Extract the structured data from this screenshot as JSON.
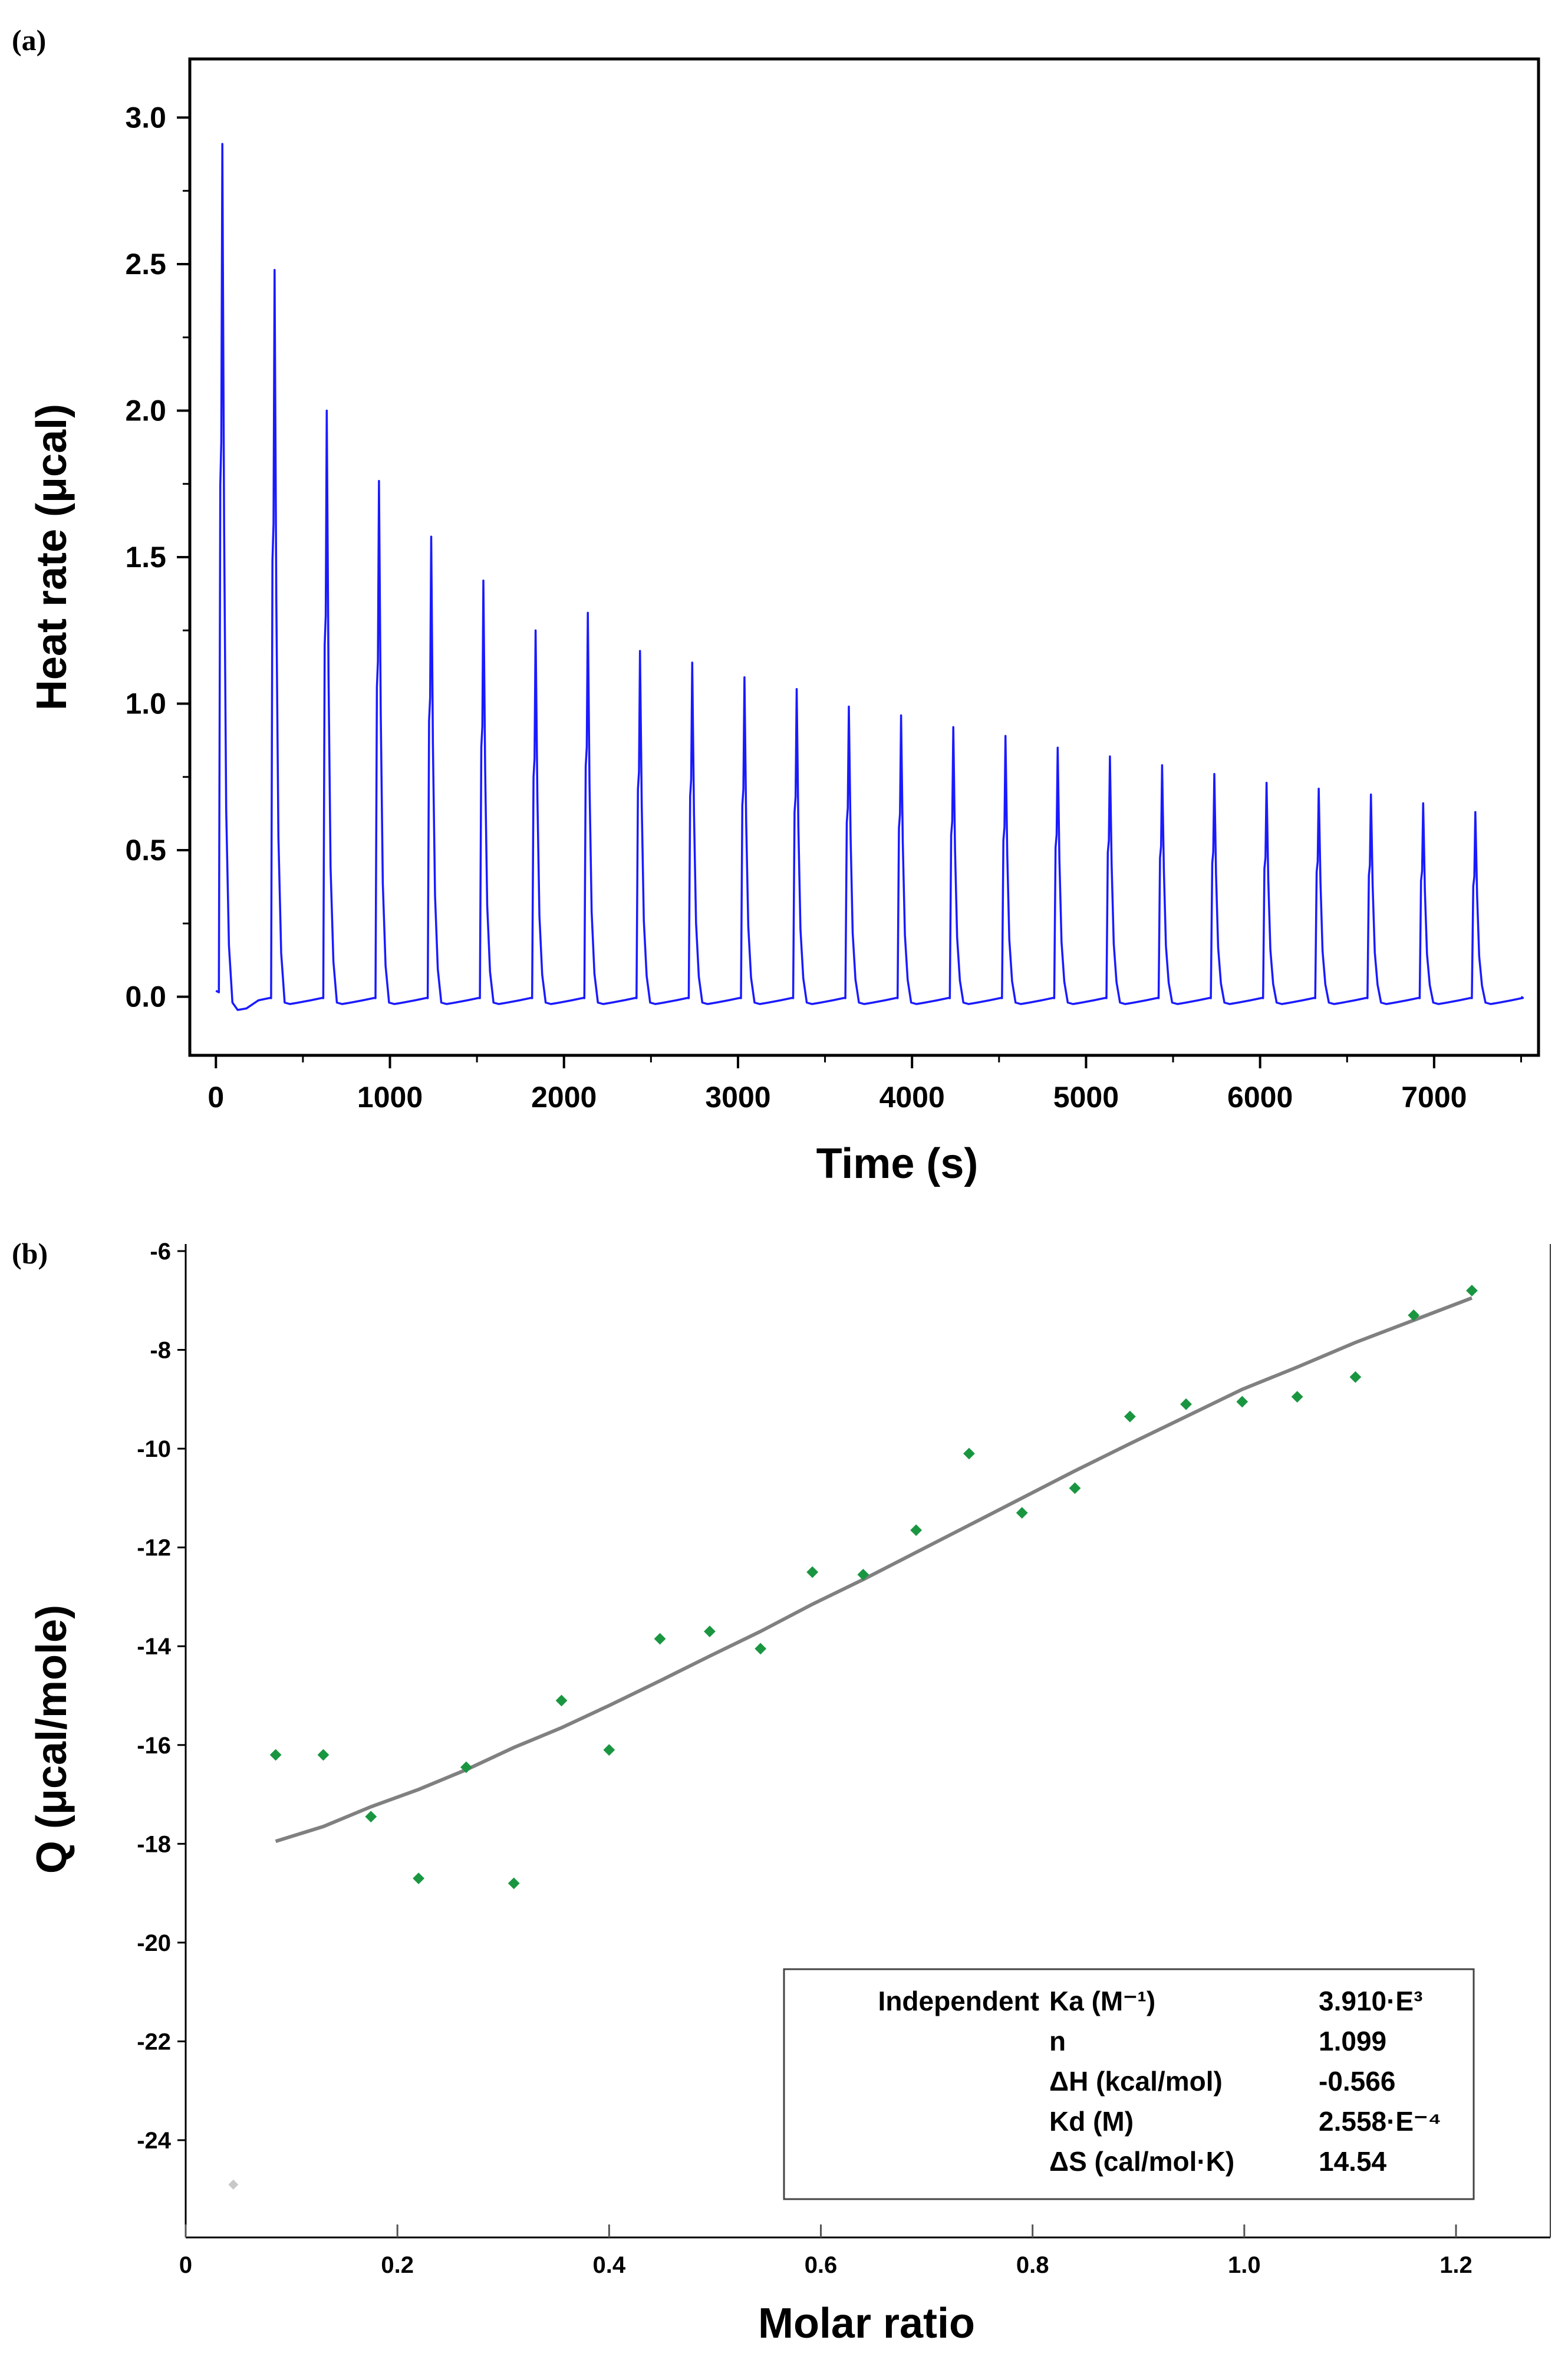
{
  "chart_data": [
    {
      "panel": "(a)",
      "type": "line",
      "xlabel": "Time (s)",
      "ylabel": "Heat rate (μcal)",
      "xlim": [
        -150,
        7600
      ],
      "ylim": [
        -0.2,
        3.2
      ],
      "xticks": [
        0,
        1000,
        2000,
        3000,
        4000,
        5000,
        6000,
        7000
      ],
      "xtick_labels": [
        "0",
        "1000",
        "2000",
        "3000",
        "4000",
        "5000",
        "6000",
        "7000"
      ],
      "yticks": [
        0.0,
        0.5,
        1.0,
        1.5,
        2.0,
        2.5,
        3.0
      ],
      "ytick_labels": [
        "0.0",
        "0.5",
        "1.0",
        "1.5",
        "2.0",
        "2.5",
        "3.0"
      ],
      "line_color": "#1a1aff",
      "injection_times": [
        25,
        325,
        625,
        925,
        1225,
        1525,
        1825,
        2125,
        2425,
        2725,
        3025,
        3325,
        3625,
        3925,
        4225,
        4525,
        4825,
        5125,
        5425,
        5725,
        6025,
        6325,
        6625,
        6925,
        7225
      ],
      "peak_heights": [
        2.91,
        2.48,
        2.0,
        1.76,
        1.57,
        1.42,
        1.25,
        1.31,
        1.18,
        1.14,
        1.09,
        1.05,
        0.99,
        0.96,
        0.92,
        0.89,
        0.85,
        0.82,
        0.79,
        0.76,
        0.73,
        0.71,
        0.69,
        0.66,
        0.63
      ],
      "x_end": 7500
    },
    {
      "panel": "(b)",
      "type": "scatter",
      "xlabel": "Molar ratio",
      "ylabel": "Q (μcal/mole)",
      "xlim": [
        0,
        1.26
      ],
      "ylim": [
        -26,
        -6
      ],
      "xticks": [
        0,
        0.2,
        0.4,
        0.6,
        0.8,
        1.0,
        1.2
      ],
      "xtick_labels": [
        "0",
        "0.2",
        "0.4",
        "0.6",
        "0.8",
        "1.0",
        "1.2"
      ],
      "yticks": [
        -6,
        -8,
        -10,
        -12,
        -14,
        -16,
        -18,
        -20,
        -22,
        -24
      ],
      "ytick_labels": [
        "-6",
        "-8",
        "-10",
        "-12",
        "-14",
        "-16",
        "-18",
        "-20",
        "-22",
        "-24"
      ],
      "point_color": "#1a9641",
      "excluded_point_color": "#c8c8c8",
      "fit_color": "#808080",
      "excluded_point": {
        "x": 0.045,
        "y": -24.9
      },
      "points": [
        {
          "x": 0.085,
          "y": -16.2
        },
        {
          "x": 0.13,
          "y": -16.2
        },
        {
          "x": 0.175,
          "y": -17.45
        },
        {
          "x": 0.22,
          "y": -18.7
        },
        {
          "x": 0.265,
          "y": -16.45
        },
        {
          "x": 0.31,
          "y": -18.8
        },
        {
          "x": 0.355,
          "y": -15.1
        },
        {
          "x": 0.4,
          "y": -16.1
        },
        {
          "x": 0.448,
          "y": -13.85
        },
        {
          "x": 0.495,
          "y": -13.7
        },
        {
          "x": 0.543,
          "y": -14.05
        },
        {
          "x": 0.592,
          "y": -12.5
        },
        {
          "x": 0.64,
          "y": -12.55
        },
        {
          "x": 0.69,
          "y": -11.65
        },
        {
          "x": 0.74,
          "y": -10.1
        },
        {
          "x": 0.79,
          "y": -11.3
        },
        {
          "x": 0.84,
          "y": -10.8
        },
        {
          "x": 0.892,
          "y": -9.35
        },
        {
          "x": 0.945,
          "y": -9.1
        },
        {
          "x": 0.998,
          "y": -9.05
        },
        {
          "x": 1.05,
          "y": -8.95
        },
        {
          "x": 1.105,
          "y": -8.55
        },
        {
          "x": 1.16,
          "y": -7.3
        },
        {
          "x": 1.215,
          "y": -6.8
        }
      ],
      "fit_line": [
        {
          "x": 0.085,
          "y": -17.95
        },
        {
          "x": 0.13,
          "y": -17.65
        },
        {
          "x": 0.175,
          "y": -17.25
        },
        {
          "x": 0.22,
          "y": -16.9
        },
        {
          "x": 0.265,
          "y": -16.5
        },
        {
          "x": 0.31,
          "y": -16.05
        },
        {
          "x": 0.355,
          "y": -15.65
        },
        {
          "x": 0.4,
          "y": -15.2
        },
        {
          "x": 0.448,
          "y": -14.7
        },
        {
          "x": 0.495,
          "y": -14.2
        },
        {
          "x": 0.543,
          "y": -13.7
        },
        {
          "x": 0.592,
          "y": -13.15
        },
        {
          "x": 0.64,
          "y": -12.65
        },
        {
          "x": 0.69,
          "y": -12.1
        },
        {
          "x": 0.74,
          "y": -11.55
        },
        {
          "x": 0.79,
          "y": -11.0
        },
        {
          "x": 0.84,
          "y": -10.45
        },
        {
          "x": 0.892,
          "y": -9.9
        },
        {
          "x": 0.945,
          "y": -9.35
        },
        {
          "x": 0.998,
          "y": -8.8
        },
        {
          "x": 1.05,
          "y": -8.35
        },
        {
          "x": 1.105,
          "y": -7.85
        },
        {
          "x": 1.16,
          "y": -7.4
        },
        {
          "x": 1.215,
          "y": -6.95
        }
      ],
      "legend": {
        "placement": "bottom-right",
        "model": "Independent",
        "rows": [
          {
            "label": "Ka (M⁻¹)",
            "value": "3.910·E³"
          },
          {
            "label": "n",
            "value": "1.099"
          },
          {
            "label": "ΔH (kcal/mol)",
            "value": "-0.566"
          },
          {
            "label": "Kd (M)",
            "value": "2.558·E⁻⁴"
          },
          {
            "label": "ΔS (cal/mol·K)",
            "value": "14.54"
          }
        ]
      }
    }
  ]
}
